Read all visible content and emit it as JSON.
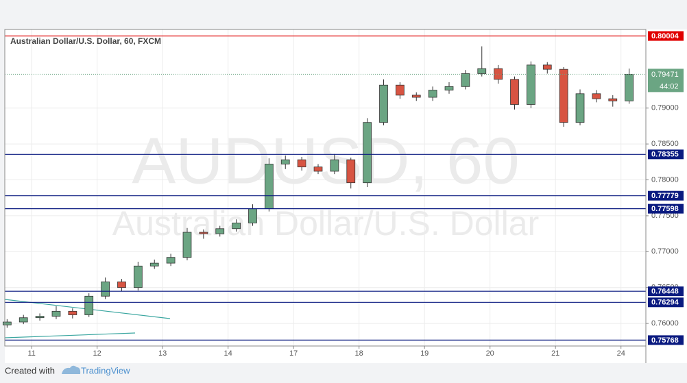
{
  "chart_data": {
    "type": "candlestick",
    "title": "Australian Dollar/U.S. Dollar, 60, FXCM",
    "watermark": {
      "symbol": "AUDUSD, 60",
      "description": "Australian Dollar/U.S. Dollar"
    },
    "x": [
      -0.375,
      -0.125,
      0.125,
      0.375,
      0.625,
      0.875,
      1.125,
      1.375,
      1.625,
      1.875,
      2.125,
      2.375,
      2.625,
      2.875,
      3.125,
      3.375,
      3.625,
      3.875,
      4.125,
      4.375,
      4.625,
      4.875,
      5.125,
      5.375,
      5.625,
      5.875,
      6.125,
      6.375,
      6.625,
      6.875,
      7.125,
      7.375,
      7.625,
      7.875,
      8.125,
      8.375,
      8.625,
      8.875,
      9.125
    ],
    "open": [
      0.7598,
      0.7602,
      0.7608,
      0.761,
      0.7617,
      0.7612,
      0.7638,
      0.7658,
      0.765,
      0.768,
      0.7684,
      0.7692,
      0.7727,
      0.7725,
      0.7732,
      0.774,
      0.776,
      0.7822,
      0.7828,
      0.7818,
      0.7812,
      0.7828,
      0.7796,
      0.788,
      0.7932,
      0.7918,
      0.7915,
      0.7925,
      0.793,
      0.7948,
      0.7955,
      0.794,
      0.7905,
      0.796,
      0.7954,
      0.788,
      0.792,
      0.7913,
      0.791
    ],
    "high": [
      0.7606,
      0.7612,
      0.7614,
      0.7624,
      0.7621,
      0.7642,
      0.7664,
      0.7662,
      0.7686,
      0.7689,
      0.7697,
      0.7733,
      0.7731,
      0.7736,
      0.7745,
      0.7766,
      0.783,
      0.7834,
      0.7832,
      0.7822,
      0.7836,
      0.7831,
      0.7886,
      0.794,
      0.7936,
      0.7922,
      0.793,
      0.7936,
      0.7953,
      0.7986,
      0.796,
      0.7944,
      0.7965,
      0.7964,
      0.7957,
      0.7926,
      0.7925,
      0.7918,
      0.7955
    ],
    "low": [
      0.7594,
      0.7599,
      0.7604,
      0.7606,
      0.7607,
      0.7609,
      0.7634,
      0.7645,
      0.7646,
      0.7676,
      0.768,
      0.7688,
      0.7718,
      0.7721,
      0.7728,
      0.7736,
      0.7756,
      0.7815,
      0.7813,
      0.7808,
      0.7808,
      0.7788,
      0.779,
      0.7876,
      0.7913,
      0.791,
      0.791,
      0.792,
      0.7926,
      0.7944,
      0.7934,
      0.7898,
      0.79,
      0.7948,
      0.7874,
      0.7876,
      0.7908,
      0.7902,
      0.7906
    ],
    "close": [
      0.7602,
      0.7608,
      0.761,
      0.7617,
      0.7612,
      0.7638,
      0.7658,
      0.765,
      0.768,
      0.7684,
      0.7692,
      0.7727,
      0.7725,
      0.7732,
      0.774,
      0.776,
      0.7822,
      0.7828,
      0.7818,
      0.7812,
      0.7828,
      0.7796,
      0.788,
      0.7932,
      0.7918,
      0.7915,
      0.7925,
      0.793,
      0.7948,
      0.7955,
      0.794,
      0.7905,
      0.796,
      0.7954,
      0.788,
      0.792,
      0.7913,
      0.791,
      0.7947
    ],
    "up_color": "#6ba583",
    "down_color": "#d75442",
    "xlim": [
      -0.41,
      9.38
    ],
    "xticks": [
      {
        "value": 0,
        "label": "11"
      },
      {
        "value": 1,
        "label": "12"
      },
      {
        "value": 2,
        "label": "13"
      },
      {
        "value": 3,
        "label": "14"
      },
      {
        "value": 4,
        "label": "17"
      },
      {
        "value": 5,
        "label": "18"
      },
      {
        "value": 6,
        "label": "19"
      },
      {
        "value": 7,
        "label": "20"
      },
      {
        "value": 8,
        "label": "21"
      },
      {
        "value": 9,
        "label": "24"
      }
    ],
    "ylim": [
      0.75686,
      0.80095
    ],
    "yticks": [
      {
        "value": 0.76,
        "label": "0.76000"
      },
      {
        "value": 0.765,
        "label": "0.76500"
      },
      {
        "value": 0.77,
        "label": "0.77000"
      },
      {
        "value": 0.775,
        "label": "0.77500"
      },
      {
        "value": 0.78,
        "label": "0.78000"
      },
      {
        "value": 0.785,
        "label": "0.78500"
      },
      {
        "value": 0.79,
        "label": "0.79000"
      }
    ],
    "grid": true,
    "levels": [
      {
        "value": 0.80004,
        "color": "#e00000"
      },
      {
        "value": 0.78355,
        "color": "#0a1a80"
      },
      {
        "value": 0.77779,
        "color": "#0a1a80"
      },
      {
        "value": 0.77598,
        "color": "#0a1a80"
      },
      {
        "value": 0.76448,
        "color": "#0a1a80"
      },
      {
        "value": 0.76294,
        "color": "#0a1a80"
      },
      {
        "value": 0.75768,
        "color": "#0a1a80"
      }
    ],
    "current_price": {
      "value": 0.79471,
      "countdown": "44:02",
      "color": "#6ba583"
    }
  },
  "footer": {
    "created_with": "Created with",
    "brand": "TradingView"
  }
}
